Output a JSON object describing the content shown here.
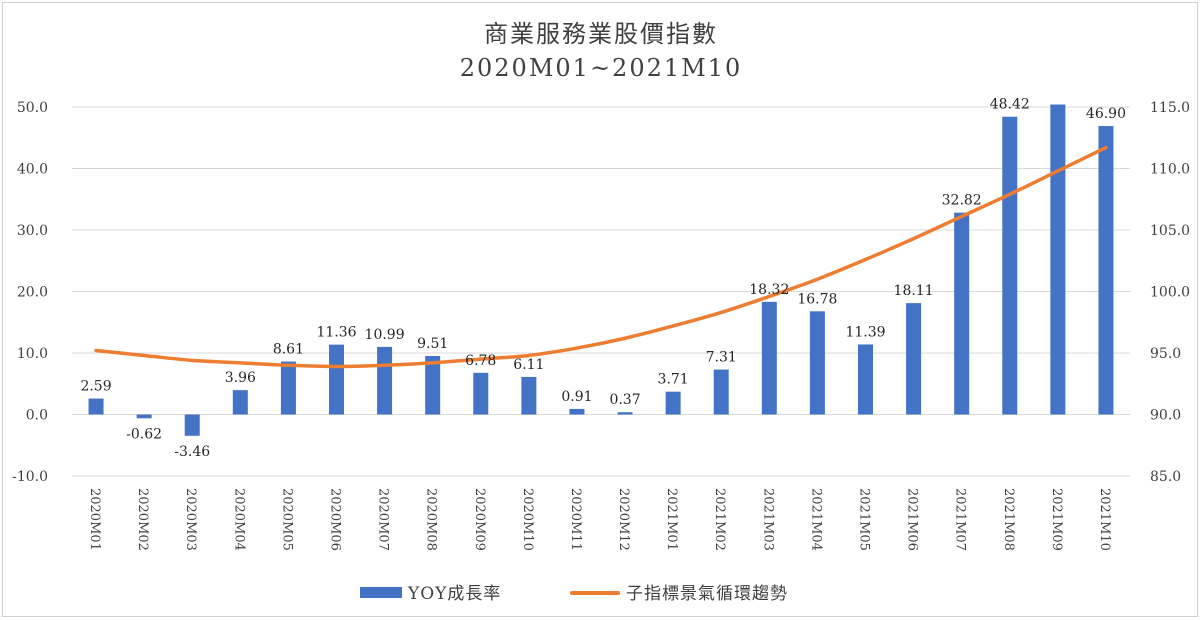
{
  "chart_data": {
    "type": "bar",
    "title": "商業服務業股價指數",
    "subtitle": "2020M01~2021M10",
    "categories": [
      "2020M01",
      "2020M02",
      "2020M03",
      "2020M04",
      "2020M05",
      "2020M06",
      "2020M07",
      "2020M08",
      "2020M09",
      "2020M10",
      "2020M11",
      "2020M12",
      "2021M01",
      "2021M02",
      "2021M03",
      "2021M04",
      "2021M05",
      "2021M06",
      "2021M07",
      "2021M08",
      "2021M09",
      "2021M10"
    ],
    "series": [
      {
        "name": "YOY成長率",
        "type": "bar",
        "axis": "left",
        "color": "#4472C4",
        "values": [
          2.59,
          -0.62,
          -3.46,
          3.96,
          8.61,
          11.36,
          10.99,
          9.51,
          6.78,
          6.11,
          0.91,
          0.37,
          3.71,
          7.31,
          18.32,
          16.78,
          11.39,
          18.11,
          32.82,
          48.42,
          50.4,
          46.9
        ],
        "data_labels": [
          "2.59",
          "-0.62",
          "-3.46",
          "3.96",
          "8.61",
          "11.36",
          "10.99",
          "9.51",
          "6.78",
          "6.11",
          "0.91",
          "0.37",
          "3.71",
          "7.31",
          "18.32",
          "16.78",
          "11.39",
          "18.11",
          "32.82",
          "48.42",
          "",
          "46.90"
        ]
      },
      {
        "name": "子指標景氣循環趨勢",
        "type": "line",
        "axis": "right",
        "color": "#ED7D31",
        "values": [
          95.2,
          94.8,
          94.4,
          94.2,
          94.0,
          93.9,
          94.0,
          94.2,
          94.5,
          94.8,
          95.4,
          96.2,
          97.2,
          98.3,
          99.6,
          101.0,
          102.6,
          104.3,
          106.1,
          107.9,
          109.8,
          111.7
        ]
      }
    ],
    "y_left": {
      "ylim": [
        -10,
        50
      ],
      "ticks": [
        -10,
        0,
        10,
        20,
        30,
        40,
        50
      ],
      "tick_labels": [
        "-10.0",
        "0.0",
        "10.0",
        "20.0",
        "30.0",
        "40.0",
        "50.0"
      ]
    },
    "y_right": {
      "ylim": [
        85,
        115
      ],
      "ticks": [
        85,
        90,
        95,
        100,
        105,
        110,
        115
      ],
      "tick_labels": [
        "85.0",
        "90.0",
        "95.0",
        "100.0",
        "105.0",
        "110.0",
        "115.0"
      ]
    },
    "grid": true,
    "legend": "bottom"
  }
}
